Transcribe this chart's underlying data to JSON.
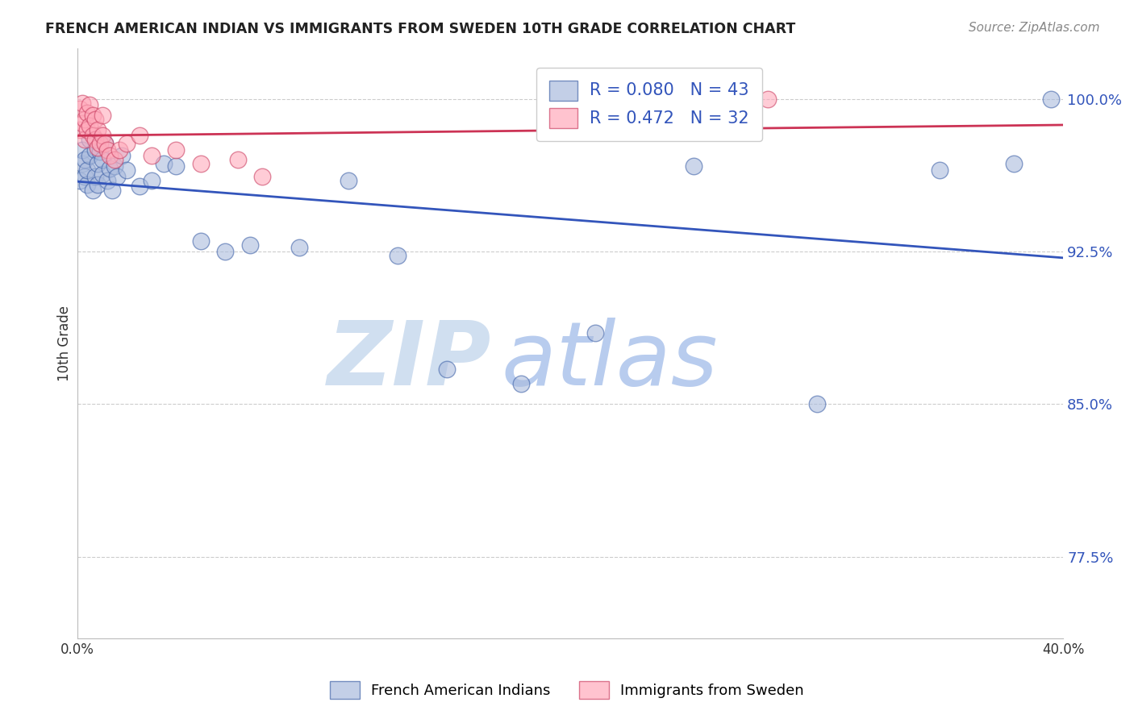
{
  "title": "FRENCH AMERICAN INDIAN VS IMMIGRANTS FROM SWEDEN 10TH GRADE CORRELATION CHART",
  "source": "Source: ZipAtlas.com",
  "ylabel": "10th Grade",
  "xlim": [
    0.0,
    0.4
  ],
  "ylim": [
    0.735,
    1.025
  ],
  "yticks": [
    0.775,
    0.85,
    0.925,
    1.0
  ],
  "ytick_labels": [
    "77.5%",
    "85.0%",
    "92.5%",
    "100.0%"
  ],
  "xticks": [
    0.0,
    0.05,
    0.1,
    0.15,
    0.2,
    0.25,
    0.3,
    0.35,
    0.4
  ],
  "xtick_labels": [
    "0.0%",
    "",
    "",
    "",
    "",
    "",
    "",
    "",
    "40.0%"
  ],
  "blue_R": 0.08,
  "blue_N": 43,
  "pink_R": 0.472,
  "pink_N": 32,
  "blue_fill": "#aabbdd",
  "blue_edge": "#4466aa",
  "pink_fill": "#ffaabb",
  "pink_edge": "#cc4466",
  "blue_trend": "#3355bb",
  "pink_trend": "#cc3355",
  "blue_scatter_x": [
    0.001,
    0.002,
    0.002,
    0.003,
    0.003,
    0.004,
    0.004,
    0.005,
    0.005,
    0.006,
    0.007,
    0.007,
    0.008,
    0.008,
    0.009,
    0.01,
    0.01,
    0.011,
    0.012,
    0.013,
    0.014,
    0.015,
    0.016,
    0.018,
    0.02,
    0.025,
    0.03,
    0.035,
    0.04,
    0.05,
    0.06,
    0.07,
    0.09,
    0.11,
    0.13,
    0.15,
    0.18,
    0.21,
    0.25,
    0.3,
    0.35,
    0.38,
    0.395
  ],
  "blue_scatter_y": [
    0.96,
    0.968,
    0.975,
    0.962,
    0.97,
    0.958,
    0.965,
    0.972,
    0.98,
    0.955,
    0.975,
    0.962,
    0.958,
    0.968,
    0.974,
    0.963,
    0.97,
    0.978,
    0.96,
    0.966,
    0.955,
    0.967,
    0.962,
    0.972,
    0.965,
    0.957,
    0.96,
    0.968,
    0.967,
    0.93,
    0.925,
    0.928,
    0.927,
    0.96,
    0.923,
    0.867,
    0.86,
    0.885,
    0.967,
    0.85,
    0.965,
    0.968,
    1.0
  ],
  "pink_scatter_x": [
    0.001,
    0.001,
    0.002,
    0.002,
    0.003,
    0.003,
    0.004,
    0.004,
    0.005,
    0.005,
    0.006,
    0.006,
    0.007,
    0.007,
    0.008,
    0.008,
    0.009,
    0.01,
    0.01,
    0.011,
    0.012,
    0.013,
    0.015,
    0.017,
    0.02,
    0.025,
    0.03,
    0.04,
    0.05,
    0.065,
    0.075,
    0.28
  ],
  "pink_scatter_y": [
    0.985,
    0.995,
    0.988,
    0.998,
    0.98,
    0.99,
    0.985,
    0.993,
    0.987,
    0.997,
    0.982,
    0.992,
    0.98,
    0.99,
    0.976,
    0.985,
    0.978,
    0.982,
    0.992,
    0.978,
    0.975,
    0.972,
    0.97,
    0.975,
    0.978,
    0.982,
    0.972,
    0.975,
    0.968,
    0.97,
    0.962,
    1.0
  ],
  "watermark_zip": "ZIP",
  "watermark_atlas": "atlas",
  "watermark_color": "#d0dff0",
  "legend_blue_label": "French American Indians",
  "legend_pink_label": "Immigrants from Sweden",
  "bg": "#ffffff",
  "grid_color": "#cccccc"
}
